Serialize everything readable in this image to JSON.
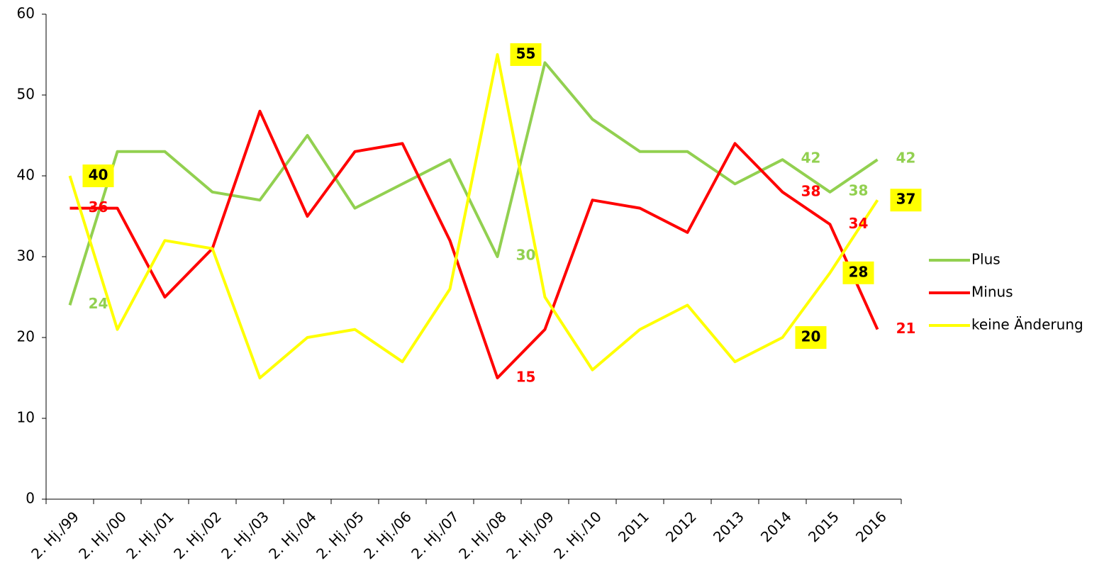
{
  "chart_data": {
    "type": "line",
    "categories": [
      "2. Hj./99",
      "2. Hj./00",
      "2. Hj./01",
      "2. Hj./02",
      "2. Hj./03",
      "2. Hj./04",
      "2. Hj./05",
      "2. Hj./06",
      "2. Hj./07",
      "2. Hj./08",
      "2. Hj./09",
      "2. Hj./10",
      "2011",
      "2012",
      "2013",
      "2014",
      "2015",
      "2016"
    ],
    "series": [
      {
        "name": "Plus",
        "color": "#92d050",
        "values": [
          24,
          43,
          43,
          38,
          37,
          45,
          36,
          39,
          42,
          30,
          54,
          47,
          43,
          43,
          39,
          42,
          38,
          42
        ],
        "labeled_points": [
          0,
          9,
          15,
          16,
          17
        ]
      },
      {
        "name": "Minus",
        "color": "#ff0000",
        "values": [
          36,
          36,
          25,
          31,
          48,
          35,
          43,
          44,
          32,
          15,
          21,
          37,
          36,
          33,
          44,
          38,
          34,
          21
        ],
        "labeled_points": [
          0,
          9,
          15,
          16,
          17
        ]
      },
      {
        "name": "keine Änderung",
        "color": "#ffff00",
        "values": [
          40,
          21,
          32,
          31,
          15,
          20,
          21,
          17,
          26,
          55,
          25,
          16,
          21,
          24,
          17,
          20,
          28,
          37
        ],
        "labeled_points": [
          0,
          9,
          15,
          16,
          17
        ]
      }
    ],
    "ylim": [
      0,
      60
    ],
    "yticks": [
      0,
      10,
      20,
      30,
      40,
      50,
      60
    ],
    "legend": "right"
  }
}
